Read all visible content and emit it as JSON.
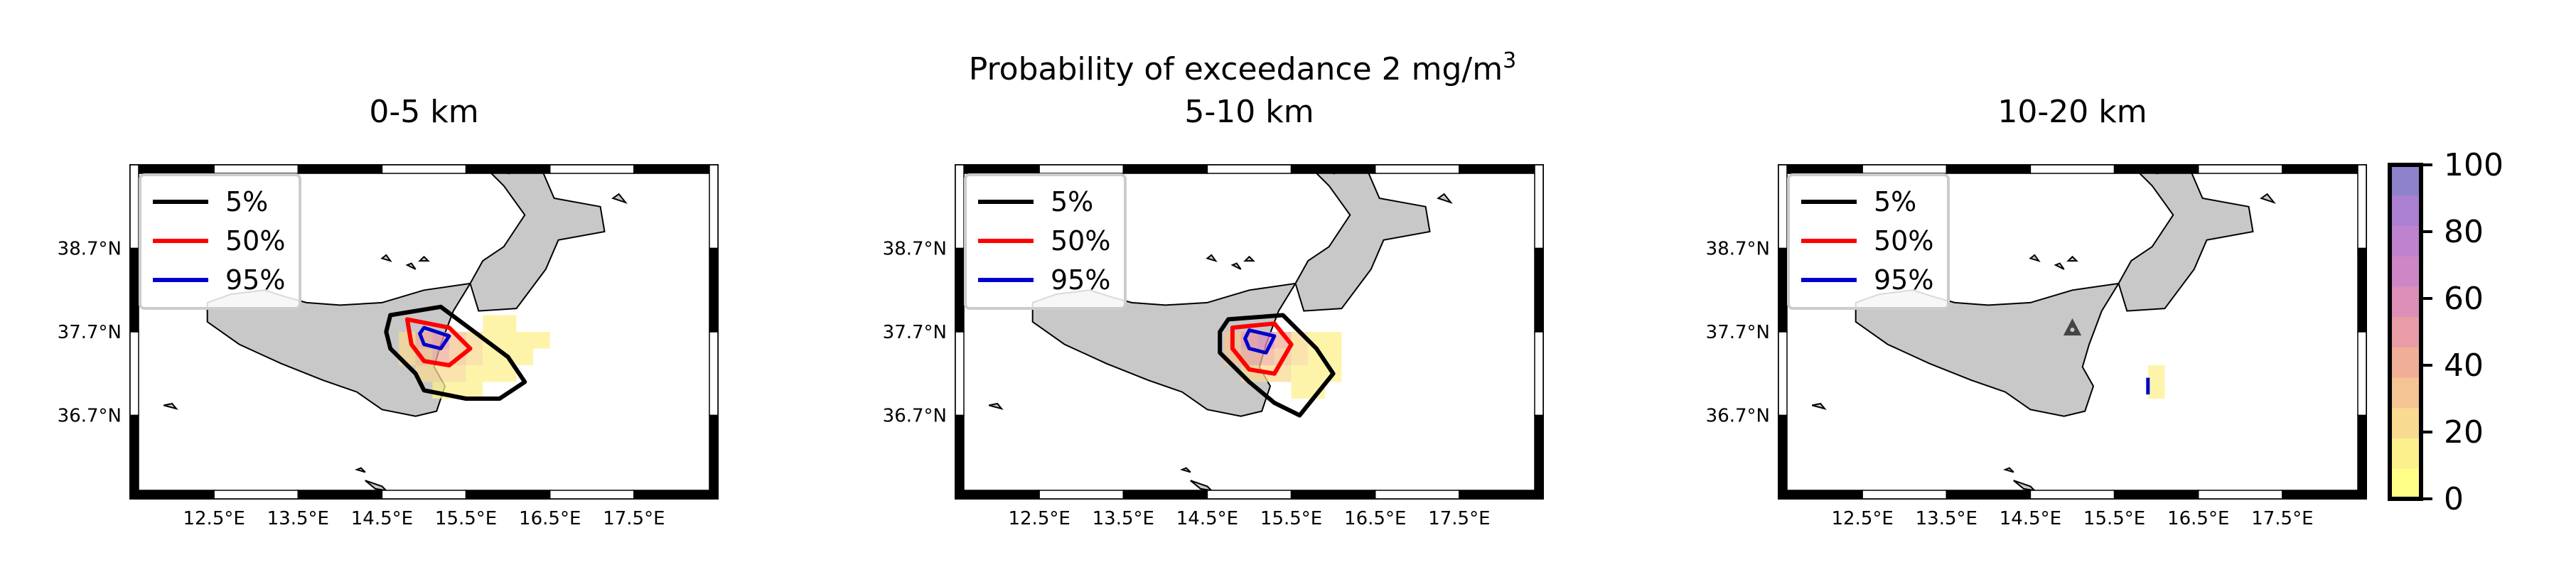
{
  "figure": {
    "suptitle_main": "Probability of exceedance 2 mg/m",
    "suptitle_sup": "3"
  },
  "legend": [
    {
      "label": "5%",
      "color": "#000000"
    },
    {
      "label": "50%",
      "color": "#ff0000"
    },
    {
      "label": "95%",
      "color": "#0000cc"
    }
  ],
  "axes": {
    "lon_ticks": [
      {
        "value": 12.5,
        "label": "12.5°E"
      },
      {
        "value": 13.5,
        "label": "13.5°E"
      },
      {
        "value": 14.5,
        "label": "14.5°E"
      },
      {
        "value": 15.5,
        "label": "15.5°E"
      },
      {
        "value": 16.5,
        "label": "16.5°E"
      },
      {
        "value": 17.5,
        "label": "17.5°E"
      }
    ],
    "lat_ticks": [
      {
        "value": 38.7,
        "label": "38.7°N"
      },
      {
        "value": 37.7,
        "label": "37.7°N"
      },
      {
        "value": 36.7,
        "label": "36.7°N"
      }
    ],
    "lon_range": [
      11.5,
      18.5
    ],
    "lat_range": [
      35.7,
      39.7
    ]
  },
  "colorbar": {
    "ticks": [
      "0",
      "20",
      "40",
      "60",
      "80",
      "100"
    ],
    "colors": [
      "#ffff88",
      "#fcf08d",
      "#f8da90",
      "#f4c493",
      "#f0ae98",
      "#e99ba6",
      "#dd8fb8",
      "#cf86c6",
      "#bf82cf",
      "#ab80d3",
      "#8e82cc"
    ]
  },
  "chart_data": {
    "type": "heatmap",
    "panels": [
      {
        "title": "0-5 km",
        "cells": [
          {
            "lon": 14.8,
            "lat": 37.6,
            "p": 20
          },
          {
            "lon": 15.0,
            "lat": 37.6,
            "p": 35
          },
          {
            "lon": 15.2,
            "lat": 37.6,
            "p": 45
          },
          {
            "lon": 15.4,
            "lat": 37.6,
            "p": 30
          },
          {
            "lon": 15.6,
            "lat": 37.6,
            "p": 15
          },
          {
            "lon": 14.8,
            "lat": 37.4,
            "p": 20
          },
          {
            "lon": 15.0,
            "lat": 37.4,
            "p": 30
          },
          {
            "lon": 15.2,
            "lat": 37.4,
            "p": 35
          },
          {
            "lon": 15.4,
            "lat": 37.4,
            "p": 30
          },
          {
            "lon": 15.6,
            "lat": 37.4,
            "p": 20
          },
          {
            "lon": 15.0,
            "lat": 37.2,
            "p": 15
          },
          {
            "lon": 15.2,
            "lat": 37.2,
            "p": 15
          },
          {
            "lon": 15.4,
            "lat": 37.2,
            "p": 20
          },
          {
            "lon": 15.6,
            "lat": 37.2,
            "p": 10
          },
          {
            "lon": 15.8,
            "lat": 37.8,
            "p": 5
          },
          {
            "lon": 16.0,
            "lat": 37.8,
            "p": 5
          },
          {
            "lon": 15.8,
            "lat": 37.6,
            "p": 5
          },
          {
            "lon": 16.0,
            "lat": 37.6,
            "p": 5
          },
          {
            "lon": 16.2,
            "lat": 37.6,
            "p": 5
          },
          {
            "lon": 16.4,
            "lat": 37.6,
            "p": 5
          },
          {
            "lon": 15.8,
            "lat": 37.4,
            "p": 5
          },
          {
            "lon": 16.0,
            "lat": 37.4,
            "p": 5
          },
          {
            "lon": 16.2,
            "lat": 37.4,
            "p": 5
          },
          {
            "lon": 15.8,
            "lat": 37.2,
            "p": 5
          },
          {
            "lon": 16.0,
            "lat": 37.2,
            "p": 5
          },
          {
            "lon": 15.2,
            "lat": 37.0,
            "p": 5
          },
          {
            "lon": 15.4,
            "lat": 37.0,
            "p": 5
          },
          {
            "lon": 15.6,
            "lat": 37.0,
            "p": 5
          }
        ],
        "contours": [
          {
            "level": "5%",
            "points": [
              [
                14.6,
                37.9
              ],
              [
                15.2,
                38.0
              ],
              [
                15.6,
                37.7
              ],
              [
                16.0,
                37.4
              ],
              [
                16.2,
                37.1
              ],
              [
                15.9,
                36.9
              ],
              [
                15.5,
                36.9
              ],
              [
                15.0,
                37.0
              ],
              [
                14.9,
                37.2
              ],
              [
                14.6,
                37.5
              ],
              [
                14.55,
                37.7
              ]
            ]
          },
          {
            "level": "50%",
            "points": [
              [
                14.8,
                37.85
              ],
              [
                15.3,
                37.75
              ],
              [
                15.55,
                37.5
              ],
              [
                15.3,
                37.3
              ],
              [
                15.0,
                37.35
              ],
              [
                14.85,
                37.55
              ]
            ]
          },
          {
            "level": "95%",
            "points": [
              [
                15.0,
                37.75
              ],
              [
                15.3,
                37.65
              ],
              [
                15.2,
                37.5
              ],
              [
                15.0,
                37.55
              ],
              [
                14.95,
                37.68
              ]
            ]
          }
        ],
        "marker": null
      },
      {
        "title": "5-10 km",
        "cells": [
          {
            "lon": 14.8,
            "lat": 37.6,
            "p": 25
          },
          {
            "lon": 15.0,
            "lat": 37.6,
            "p": 45
          },
          {
            "lon": 15.2,
            "lat": 37.6,
            "p": 60
          },
          {
            "lon": 15.4,
            "lat": 37.6,
            "p": 35
          },
          {
            "lon": 15.6,
            "lat": 37.6,
            "p": 15
          },
          {
            "lon": 14.8,
            "lat": 37.4,
            "p": 25
          },
          {
            "lon": 15.0,
            "lat": 37.4,
            "p": 40
          },
          {
            "lon": 15.2,
            "lat": 37.4,
            "p": 40
          },
          {
            "lon": 15.4,
            "lat": 37.4,
            "p": 30
          },
          {
            "lon": 15.6,
            "lat": 37.4,
            "p": 15
          },
          {
            "lon": 15.0,
            "lat": 37.2,
            "p": 15
          },
          {
            "lon": 15.2,
            "lat": 37.2,
            "p": 20
          },
          {
            "lon": 15.4,
            "lat": 37.2,
            "p": 15
          },
          {
            "lon": 15.6,
            "lat": 37.2,
            "p": 10
          },
          {
            "lon": 15.8,
            "lat": 37.6,
            "p": 5
          },
          {
            "lon": 16.0,
            "lat": 37.6,
            "p": 5
          },
          {
            "lon": 15.8,
            "lat": 37.4,
            "p": 5
          },
          {
            "lon": 16.0,
            "lat": 37.4,
            "p": 5
          },
          {
            "lon": 15.8,
            "lat": 37.2,
            "p": 5
          },
          {
            "lon": 16.0,
            "lat": 37.2,
            "p": 5
          },
          {
            "lon": 15.6,
            "lat": 37.0,
            "p": 5
          },
          {
            "lon": 15.8,
            "lat": 37.0,
            "p": 5
          }
        ],
        "contours": [
          {
            "level": "5%",
            "points": [
              [
                14.75,
                37.85
              ],
              [
                15.4,
                37.9
              ],
              [
                15.8,
                37.5
              ],
              [
                16.0,
                37.2
              ],
              [
                15.8,
                36.95
              ],
              [
                15.6,
                36.7
              ],
              [
                15.3,
                36.85
              ],
              [
                15.0,
                37.1
              ],
              [
                14.65,
                37.45
              ],
              [
                14.65,
                37.7
              ]
            ]
          },
          {
            "level": "50%",
            "points": [
              [
                14.8,
                37.75
              ],
              [
                15.3,
                37.8
              ],
              [
                15.5,
                37.55
              ],
              [
                15.3,
                37.2
              ],
              [
                15.0,
                37.25
              ],
              [
                14.8,
                37.5
              ]
            ]
          },
          {
            "level": "95%",
            "points": [
              [
                15.0,
                37.72
              ],
              [
                15.3,
                37.65
              ],
              [
                15.2,
                37.45
              ],
              [
                15.0,
                37.5
              ],
              [
                14.95,
                37.62
              ]
            ]
          }
        ],
        "marker": null
      },
      {
        "title": "10-20 km",
        "cells": [
          {
            "lon": 16.0,
            "lat": 37.2,
            "p": 5
          },
          {
            "lon": 16.0,
            "lat": 37.0,
            "p": 5
          }
        ],
        "contours": [
          {
            "level": "95%",
            "points": [
              [
                15.9,
                37.15
              ],
              [
                15.9,
                36.95
              ]
            ]
          }
        ],
        "marker": {
          "lon": 15.0,
          "lat": 37.75
        }
      }
    ]
  }
}
